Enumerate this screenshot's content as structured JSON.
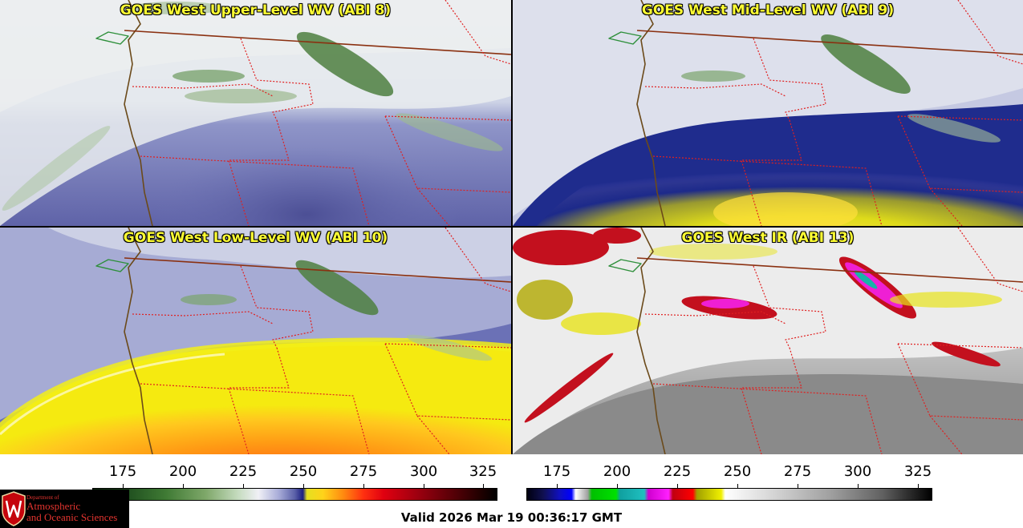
{
  "panels": [
    {
      "title": "GOES West Upper-Level WV (ABI 8)"
    },
    {
      "title": "GOES West Mid-Level WV (ABI 9)"
    },
    {
      "title": "GOES West Low-Level WV (ABI 10)"
    },
    {
      "title": "GOES West IR (ABI 13)"
    }
  ],
  "colorbars": [
    {
      "name": "water-vapor",
      "ticks": [
        "175",
        "200",
        "225",
        "250",
        "275",
        "300",
        "325"
      ]
    },
    {
      "name": "infrared",
      "ticks": [
        "175",
        "200",
        "225",
        "250",
        "275",
        "300",
        "325"
      ]
    }
  ],
  "logo": {
    "line1": "Department of",
    "line2": "Atmospheric",
    "line3": "and Oceanic Sciences",
    "emblem_icon": "uw-crest-icon"
  },
  "valid_time": "Valid 2026 Mar 19 00:36:17 GMT"
}
